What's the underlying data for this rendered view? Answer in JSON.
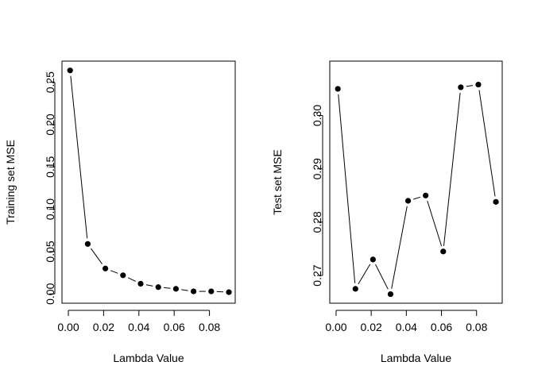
{
  "chart_data": [
    {
      "type": "line",
      "xlabel": "Lambda Value",
      "ylabel": "Training set MSE",
      "xlim": [
        -0.0036,
        0.0946
      ],
      "ylim": [
        -0.011,
        0.275
      ],
      "xticks": [
        0.0,
        0.02,
        0.04,
        0.06,
        0.08
      ],
      "xtick_labels": [
        "0.00",
        "0.02",
        "0.04",
        "0.06",
        "0.08"
      ],
      "yticks": [
        0.0,
        0.05,
        0.1,
        0.15,
        0.2,
        0.25
      ],
      "ytick_labels": [
        "0.00",
        "0.05",
        "0.10",
        "0.15",
        "0.20",
        "0.25"
      ],
      "grid": false,
      "x": [
        0.001,
        0.011,
        0.021,
        0.031,
        0.041,
        0.051,
        0.061,
        0.071,
        0.081,
        0.091
      ],
      "y": [
        0.264,
        0.059,
        0.03,
        0.022,
        0.012,
        0.008,
        0.006,
        0.003,
        0.003,
        0.002
      ],
      "color": "#000000"
    },
    {
      "type": "line",
      "xlabel": "Lambda Value",
      "ylabel": "Test set MSE",
      "xlim": [
        -0.0036,
        0.0946
      ],
      "ylim": [
        0.2648,
        0.3102
      ],
      "xticks": [
        0.0,
        0.02,
        0.04,
        0.06,
        0.08
      ],
      "xtick_labels": [
        "0.00",
        "0.02",
        "0.04",
        "0.06",
        "0.08"
      ],
      "yticks": [
        0.27,
        0.28,
        0.29,
        0.3
      ],
      "ytick_labels": [
        "0.27",
        "0.28",
        "0.29",
        "0.30"
      ],
      "grid": false,
      "x": [
        0.001,
        0.011,
        0.021,
        0.031,
        0.041,
        0.051,
        0.061,
        0.071,
        0.081,
        0.091
      ],
      "y": [
        0.305,
        0.2675,
        0.273,
        0.2665,
        0.284,
        0.285,
        0.2745,
        0.3053,
        0.3058,
        0.2838
      ],
      "color": "#000000"
    }
  ]
}
